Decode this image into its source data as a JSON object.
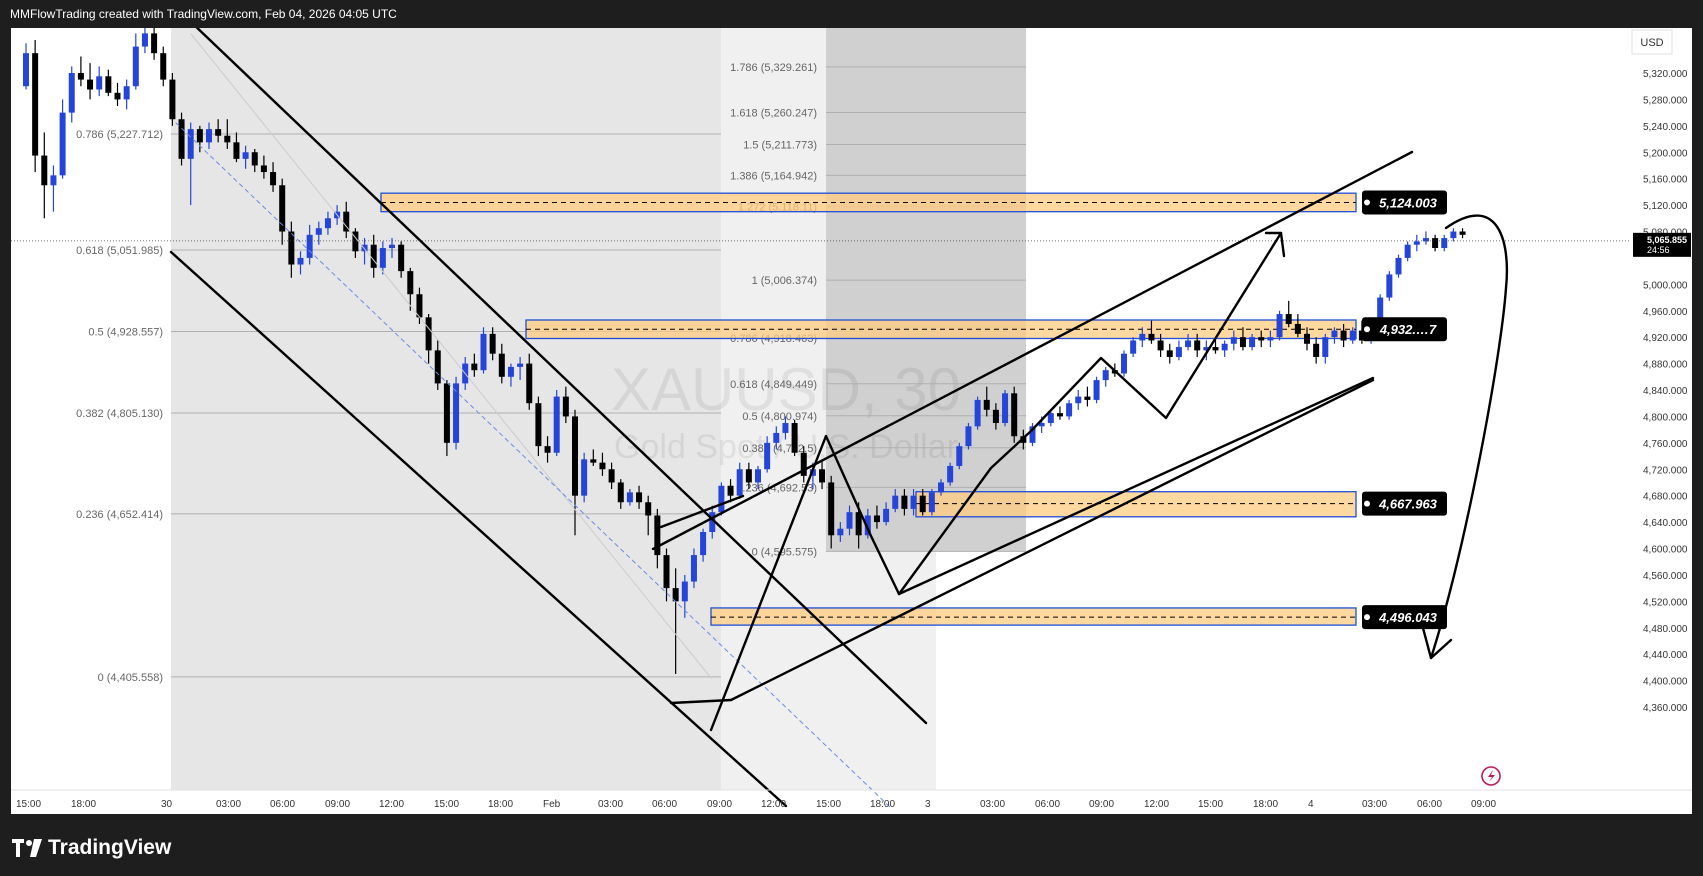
{
  "header": {
    "attribution": "MMFlowTrading created with TradingView.com, Feb 04, 2026 04:05 UTC"
  },
  "footer": {
    "brand": "TradingView"
  },
  "chart_data": {
    "type": "candlestick",
    "symbol_watermark": "XAUUSD, 30",
    "symbol_watermark_sub": "Gold Spot / U.S. Dollar",
    "currency": "USD",
    "ylim": [
      4330,
      5400
    ],
    "last_price": "5,065.855",
    "countdown": "24:56",
    "y_ticks": [
      "5,320.000",
      "5,280.000",
      "5,240.000",
      "5,200.000",
      "5,160.000",
      "5,120.000",
      "5,080.000",
      "5,000.000",
      "4,960.000",
      "4,920.000",
      "4,880.000",
      "4,840.000",
      "4,800.000",
      "4,760.000",
      "4,720.000",
      "4,680.000",
      "4,640.000",
      "4,600.000",
      "4,560.000",
      "4,520.000",
      "4,480.000",
      "4,440.000",
      "4,400.000",
      "4,360.000"
    ],
    "y_tick_values": [
      5320,
      5280,
      5240,
      5200,
      5160,
      5120,
      5080,
      5000,
      4960,
      4920,
      4880,
      4840,
      4800,
      4760,
      4720,
      4680,
      4640,
      4600,
      4560,
      4520,
      4480,
      4440,
      4400,
      4360
    ],
    "x_ticks": [
      "15:00",
      "18:00",
      "30",
      "03:00",
      "06:00",
      "09:00",
      "12:00",
      "15:00",
      "18:00",
      "Feb",
      "03:00",
      "06:00",
      "09:00",
      "12:00",
      "15:00",
      "18:00",
      "3",
      "03:00",
      "06:00",
      "09:00",
      "12:00",
      "15:00",
      "18:00",
      "4",
      "03:00",
      "06:00",
      "09:00"
    ],
    "fib_left": [
      {
        "label": "0.786 (5,227.712)",
        "value": 5227.712
      },
      {
        "label": "0.618 (5,051.985)",
        "value": 5051.985
      },
      {
        "label": "0.5 (4,928.557)",
        "value": 4928.557
      },
      {
        "label": "0.382 (4,805.130)",
        "value": 4805.13
      },
      {
        "label": "0.236 (4,652.414)",
        "value": 4652.414
      },
      {
        "label": "0 (4,405.558)",
        "value": 4405.558
      }
    ],
    "fib_right": [
      {
        "label": "1.786 (5,329.261)",
        "value": 5329.261
      },
      {
        "label": "1.618 (5,260.247)",
        "value": 5260.247
      },
      {
        "label": "1.5 (5,211.773)",
        "value": 5211.773
      },
      {
        "label": "1.386 (5,164.942)",
        "value": 5164.942
      },
      {
        "label": "1.272 (5,118.11)",
        "value": 5118.11
      },
      {
        "label": "1 (5,006.374)",
        "value": 5006.374
      },
      {
        "label": "0.786 (4,918.463)",
        "value": 4918.463
      },
      {
        "label": "0.618 (4,849.449)",
        "value": 4849.449
      },
      {
        "label": "0.5 (4,800.974)",
        "value": 4800.974
      },
      {
        "label": "0.382 (4,752.5)",
        "value": 4752.5
      },
      {
        "label": "0.236 (4,692.53)",
        "value": 4692.53
      },
      {
        "label": "0 (4,595.575)",
        "value": 4595.575
      }
    ],
    "zones": [
      {
        "label": "5,124.003",
        "mid": 5124.003,
        "top": 5138,
        "bottom": 5110
      },
      {
        "label": "4,932.…7",
        "mid": 4932,
        "top": 4946,
        "bottom": 4918
      },
      {
        "label": "4,667.963",
        "mid": 4667.963,
        "top": 4686,
        "bottom": 4648
      },
      {
        "label": "4,496.043",
        "mid": 4496.043,
        "top": 4510,
        "bottom": 4484
      }
    ],
    "colors": {
      "up": "#2445d8",
      "down": "#000000",
      "zone_fill": "#ffcc80",
      "zone_border": "#1e4fd6",
      "shade": "#e6e6e6",
      "shade_dark": "#d0d0d0",
      "fib_line": "#b0b0b0",
      "fib_text": "#666666"
    },
    "candles": [
      [
        5300,
        5365,
        5295,
        5350
      ],
      [
        5350,
        5370,
        5170,
        5195
      ],
      [
        5195,
        5230,
        5100,
        5150
      ],
      [
        5150,
        5180,
        5110,
        5165
      ],
      [
        5165,
        5280,
        5160,
        5260
      ],
      [
        5260,
        5330,
        5245,
        5320
      ],
      [
        5320,
        5345,
        5300,
        5310
      ],
      [
        5310,
        5335,
        5280,
        5295
      ],
      [
        5295,
        5330,
        5285,
        5315
      ],
      [
        5315,
        5325,
        5285,
        5290
      ],
      [
        5290,
        5305,
        5270,
        5280
      ],
      [
        5280,
        5310,
        5265,
        5300
      ],
      [
        5300,
        5380,
        5295,
        5360
      ],
      [
        5360,
        5395,
        5350,
        5380
      ],
      [
        5380,
        5395,
        5340,
        5350
      ],
      [
        5350,
        5360,
        5300,
        5310
      ],
      [
        5310,
        5320,
        5240,
        5250
      ],
      [
        5250,
        5260,
        5180,
        5190
      ],
      [
        5190,
        5245,
        5120,
        5235
      ],
      [
        5235,
        5240,
        5200,
        5215
      ],
      [
        5215,
        5245,
        5205,
        5235
      ],
      [
        5235,
        5250,
        5215,
        5225
      ],
      [
        5225,
        5250,
        5205,
        5215
      ],
      [
        5215,
        5230,
        5185,
        5190
      ],
      [
        5190,
        5210,
        5175,
        5200
      ],
      [
        5200,
        5205,
        5170,
        5180
      ],
      [
        5180,
        5195,
        5160,
        5170
      ],
      [
        5170,
        5185,
        5140,
        5150
      ],
      [
        5150,
        5160,
        5060,
        5080
      ],
      [
        5080,
        5095,
        5010,
        5030
      ],
      [
        5030,
        5050,
        5015,
        5040
      ],
      [
        5040,
        5090,
        5030,
        5075
      ],
      [
        5075,
        5095,
        5060,
        5085
      ],
      [
        5085,
        5110,
        5075,
        5100
      ],
      [
        5100,
        5120,
        5090,
        5110
      ],
      [
        5110,
        5125,
        5070,
        5080
      ],
      [
        5080,
        5085,
        5040,
        5050
      ],
      [
        5050,
        5070,
        5030,
        5060
      ],
      [
        5060,
        5075,
        5010,
        5025
      ],
      [
        5025,
        5065,
        5015,
        5055
      ],
      [
        5055,
        5070,
        5040,
        5060
      ],
      [
        5060,
        5065,
        5010,
        5020
      ],
      [
        5020,
        5025,
        4960,
        4985
      ],
      [
        4985,
        4995,
        4940,
        4950
      ],
      [
        4950,
        4955,
        4880,
        4900
      ],
      [
        4900,
        4915,
        4840,
        4850
      ],
      [
        4850,
        4855,
        4740,
        4760
      ],
      [
        4760,
        4860,
        4750,
        4850
      ],
      [
        4850,
        4890,
        4840,
        4880
      ],
      [
        4880,
        4895,
        4860,
        4870
      ],
      [
        4870,
        4935,
        4865,
        4925
      ],
      [
        4925,
        4935,
        4885,
        4895
      ],
      [
        4895,
        4910,
        4850,
        4860
      ],
      [
        4860,
        4880,
        4845,
        4875
      ],
      [
        4875,
        4890,
        4855,
        4880
      ],
      [
        4880,
        4895,
        4810,
        4820
      ],
      [
        4820,
        4830,
        4740,
        4755
      ],
      [
        4755,
        4770,
        4730,
        4745
      ],
      [
        4745,
        4840,
        4740,
        4830
      ],
      [
        4830,
        4845,
        4790,
        4800
      ],
      [
        4800,
        4810,
        4620,
        4680
      ],
      [
        4680,
        4745,
        4670,
        4735
      ],
      [
        4735,
        4750,
        4725,
        4730
      ],
      [
        4730,
        4745,
        4710,
        4720
      ],
      [
        4720,
        4730,
        4690,
        4700
      ],
      [
        4700,
        4705,
        4660,
        4670
      ],
      [
        4670,
        4690,
        4665,
        4685
      ],
      [
        4685,
        4695,
        4660,
        4670
      ],
      [
        4670,
        4680,
        4620,
        4650
      ],
      [
        4650,
        4660,
        4570,
        4590
      ],
      [
        4590,
        4600,
        4520,
        4540
      ],
      [
        4540,
        4570,
        4410,
        4520
      ],
      [
        4520,
        4560,
        4495,
        4550
      ],
      [
        4550,
        4600,
        4540,
        4590
      ],
      [
        4590,
        4630,
        4580,
        4625
      ],
      [
        4625,
        4665,
        4615,
        4655
      ],
      [
        4655,
        4700,
        4650,
        4695
      ],
      [
        4695,
        4705,
        4670,
        4680
      ],
      [
        4680,
        4730,
        4675,
        4720
      ],
      [
        4720,
        4730,
        4690,
        4700
      ],
      [
        4700,
        4725,
        4690,
        4720
      ],
      [
        4720,
        4770,
        4715,
        4760
      ],
      [
        4760,
        4785,
        4750,
        4775
      ],
      [
        4775,
        4800,
        4765,
        4790
      ],
      [
        4790,
        4795,
        4740,
        4745
      ],
      [
        4745,
        4755,
        4700,
        4710
      ],
      [
        4710,
        4730,
        4690,
        4720
      ],
      [
        4720,
        4735,
        4690,
        4700
      ],
      [
        4700,
        4710,
        4600,
        4620
      ],
      [
        4620,
        4640,
        4610,
        4630
      ],
      [
        4630,
        4665,
        4620,
        4655
      ],
      [
        4655,
        4670,
        4600,
        4620
      ],
      [
        4620,
        4660,
        4615,
        4650
      ],
      [
        4650,
        4665,
        4630,
        4640
      ],
      [
        4640,
        4670,
        4635,
        4660
      ],
      [
        4660,
        4690,
        4655,
        4680
      ],
      [
        4680,
        4690,
        4650,
        4660
      ],
      [
        4660,
        4690,
        4650,
        4680
      ],
      [
        4680,
        4690,
        4650,
        4655
      ],
      [
        4655,
        4690,
        4650,
        4685
      ],
      [
        4685,
        4705,
        4680,
        4700
      ],
      [
        4700,
        4730,
        4695,
        4725
      ],
      [
        4725,
        4760,
        4720,
        4755
      ],
      [
        4755,
        4790,
        4750,
        4785
      ],
      [
        4785,
        4830,
        4780,
        4825
      ],
      [
        4825,
        4845,
        4800,
        4810
      ],
      [
        4810,
        4820,
        4780,
        4790
      ],
      [
        4790,
        4840,
        4785,
        4835
      ],
      [
        4835,
        4845,
        4760,
        4770
      ],
      [
        4770,
        4780,
        4750,
        4760
      ],
      [
        4760,
        4790,
        4755,
        4785
      ],
      [
        4785,
        4800,
        4775,
        4790
      ],
      [
        4790,
        4810,
        4785,
        4805
      ],
      [
        4805,
        4815,
        4795,
        4800
      ],
      [
        4800,
        4825,
        4795,
        4820
      ],
      [
        4820,
        4840,
        4810,
        4830
      ],
      [
        4830,
        4845,
        4815,
        4825
      ],
      [
        4825,
        4860,
        4820,
        4855
      ],
      [
        4855,
        4875,
        4845,
        4870
      ],
      [
        4870,
        4880,
        4860,
        4865
      ],
      [
        4865,
        4900,
        4860,
        4895
      ],
      [
        4895,
        4920,
        4890,
        4915
      ],
      [
        4915,
        4935,
        4905,
        4925
      ],
      [
        4925,
        4945,
        4910,
        4915
      ],
      [
        4915,
        4925,
        4890,
        4900
      ],
      [
        4900,
        4910,
        4880,
        4890
      ],
      [
        4890,
        4915,
        4885,
        4905
      ],
      [
        4905,
        4925,
        4900,
        4915
      ],
      [
        4915,
        4925,
        4890,
        4900
      ],
      [
        4900,
        4915,
        4885,
        4905
      ],
      [
        4905,
        4920,
        4895,
        4900
      ],
      [
        4900,
        4915,
        4890,
        4910
      ],
      [
        4910,
        4930,
        4900,
        4920
      ],
      [
        4920,
        4935,
        4900,
        4905
      ],
      [
        4905,
        4925,
        4900,
        4920
      ],
      [
        4920,
        4930,
        4905,
        4915
      ],
      [
        4915,
        4930,
        4905,
        4920
      ],
      [
        4920,
        4960,
        4915,
        4955
      ],
      [
        4955,
        4975,
        4935,
        4940
      ],
      [
        4940,
        4955,
        4920,
        4925
      ],
      [
        4925,
        4935,
        4900,
        4910
      ],
      [
        4910,
        4920,
        4880,
        4890
      ],
      [
        4890,
        4925,
        4880,
        4920
      ],
      [
        4920,
        4935,
        4910,
        4930
      ],
      [
        4930,
        4940,
        4905,
        4915
      ],
      [
        4915,
        4935,
        4910,
        4930
      ],
      [
        4930,
        4945,
        4910,
        4915
      ],
      [
        4915,
        4945,
        4910,
        4940
      ],
      [
        4940,
        4985,
        4935,
        4980
      ],
      [
        4980,
        5020,
        4975,
        5015
      ],
      [
        5015,
        5045,
        5010,
        5040
      ],
      [
        5040,
        5065,
        5035,
        5060
      ],
      [
        5060,
        5075,
        5050,
        5065
      ],
      [
        5065,
        5080,
        5060,
        5070
      ],
      [
        5070,
        5075,
        5050,
        5055
      ],
      [
        5055,
        5075,
        5050,
        5070
      ],
      [
        5070,
        5085,
        5065,
        5080
      ],
      [
        5080,
        5085,
        5070,
        5075
      ]
    ]
  }
}
